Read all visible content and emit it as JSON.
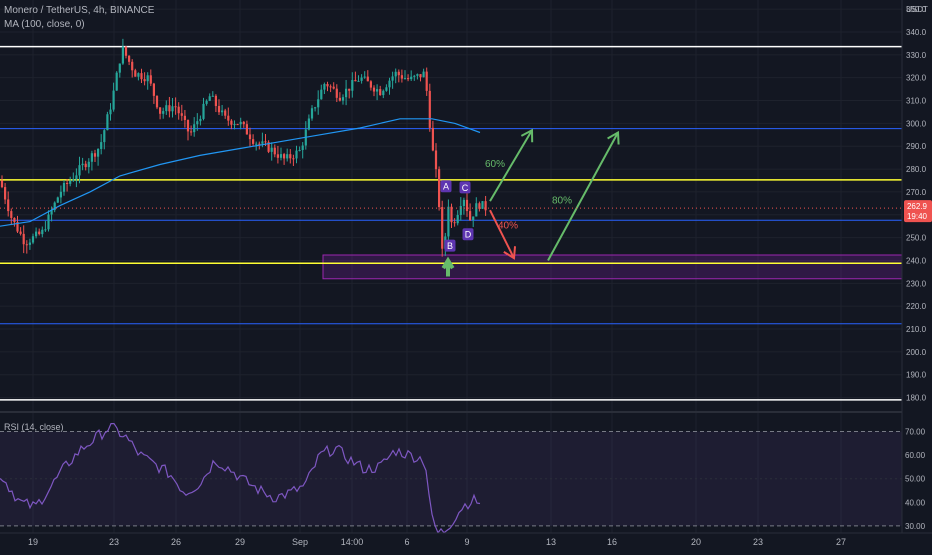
{
  "header": {
    "symbol_line": "Monero / TetherUS, 4h, BINANCE",
    "ma_line": "MA (100, close, 0)",
    "rsi_label": "RSI (14, close)"
  },
  "colors": {
    "background": "#131722",
    "up": "#26a69a",
    "down": "#ef5350",
    "ma": "#2196f3",
    "white_level": "#ffffff",
    "yellow_level": "#ffff33",
    "blue_level": "#2962ff",
    "zone": "#7b1fa2",
    "arrow_green": "#66bb6a",
    "arrow_red": "#ef5350",
    "rsi_line": "#7e57c2",
    "label_badge": "#5e35b1",
    "price_tag": "#ef5350"
  },
  "chart_data": {
    "type": "candlestick",
    "currency": "USDT",
    "last_price": "262.9",
    "countdown": "19:40",
    "y_ticks": [
      "350.0",
      "340.0",
      "330.0",
      "320.0",
      "310.0",
      "300.0",
      "290.0",
      "280.0",
      "270.0",
      "260.0",
      "250.0",
      "240.0",
      "230.0",
      "220.0",
      "210.0",
      "200.0",
      "190.0",
      "180.0"
    ],
    "y_tick_values": [
      350,
      340,
      330,
      320,
      310,
      300,
      290,
      280,
      270,
      260,
      250,
      240,
      230,
      220,
      210,
      200,
      190,
      180
    ],
    "ylim": [
      175,
      354
    ],
    "x_ticks": [
      "19",
      "23",
      "26",
      "29",
      "Sep",
      "14:00",
      "6",
      "9",
      "13",
      "16",
      "20",
      "23",
      "27"
    ],
    "price_path": [
      [
        0,
        275
      ],
      [
        12,
        258
      ],
      [
        25,
        248
      ],
      [
        42,
        252
      ],
      [
        60,
        270
      ],
      [
        80,
        280
      ],
      [
        100,
        290
      ],
      [
        112,
        310
      ],
      [
        122,
        333
      ],
      [
        135,
        322
      ],
      [
        148,
        320
      ],
      [
        160,
        305
      ],
      [
        175,
        308
      ],
      [
        190,
        295
      ],
      [
        210,
        312
      ],
      [
        225,
        302
      ],
      [
        240,
        300
      ],
      [
        255,
        292
      ],
      [
        270,
        289
      ],
      [
        285,
        284
      ],
      [
        300,
        288
      ],
      [
        312,
        305
      ],
      [
        325,
        318
      ],
      [
        340,
        312
      ],
      [
        360,
        320
      ],
      [
        380,
        314
      ],
      [
        395,
        322
      ],
      [
        410,
        319
      ],
      [
        425,
        322
      ],
      [
        432,
        290
      ],
      [
        438,
        272
      ],
      [
        443,
        238
      ],
      [
        448,
        266
      ],
      [
        452,
        255
      ],
      [
        458,
        262
      ],
      [
        463,
        269
      ],
      [
        470,
        258
      ],
      [
        478,
        265
      ],
      [
        486,
        263
      ]
    ],
    "ma_path": [
      [
        0,
        255
      ],
      [
        30,
        257
      ],
      [
        60,
        264
      ],
      [
        90,
        270
      ],
      [
        120,
        277
      ],
      [
        160,
        282
      ],
      [
        200,
        286
      ],
      [
        240,
        289
      ],
      [
        280,
        292
      ],
      [
        320,
        295
      ],
      [
        360,
        298
      ],
      [
        400,
        302
      ],
      [
        432,
        302
      ],
      [
        455,
        300
      ],
      [
        480,
        296
      ]
    ],
    "levels": [
      {
        "value": 333.6,
        "color": "white"
      },
      {
        "value": 179.0,
        "color": "white"
      },
      {
        "value": 275.3,
        "color": "yellow"
      },
      {
        "value": 238.8,
        "color": "yellow"
      },
      {
        "value": 297.7,
        "color": "blue"
      },
      {
        "value": 257.6,
        "color": "blue"
      },
      {
        "value": 212.3,
        "color": "blue"
      }
    ],
    "zone": {
      "low": 232.0,
      "high": 242.4
    },
    "annotations": {
      "pattern_labels": [
        {
          "text": "A",
          "price": 272.5,
          "x_index": 446
        },
        {
          "text": "B",
          "price": 246.5,
          "x_index": 450
        },
        {
          "text": "C",
          "price": 272.0,
          "x_index": 465
        },
        {
          "text": "D",
          "price": 251.5,
          "x_index": 468
        }
      ],
      "percent_labels": [
        {
          "text": "60%",
          "price": 281.0,
          "x_index": 495
        },
        {
          "text": "40%",
          "price": 254.0,
          "x_index": 508
        },
        {
          "text": "80%",
          "price": 265.0,
          "x_index": 562
        }
      ],
      "arrows": [
        {
          "from": [
            490,
            266
          ],
          "to": [
            532,
            297
          ],
          "color": "green"
        },
        {
          "from": [
            490,
            262
          ],
          "to": [
            514,
            241
          ],
          "color": "red"
        },
        {
          "from": [
            548,
            240
          ],
          "to": [
            618,
            296
          ],
          "color": "green"
        },
        {
          "from": [
            448,
            233
          ],
          "to": [
            448,
            240
          ],
          "color": "green"
        }
      ]
    },
    "rsi": {
      "y_ticks": [
        "70.00",
        "60.00",
        "50.00",
        "40.00",
        "30.00"
      ],
      "y_tick_values": [
        70,
        60,
        50,
        40,
        30
      ],
      "ylim": [
        27,
        77
      ],
      "bands": [
        70,
        30
      ],
      "path": [
        [
          0,
          52
        ],
        [
          20,
          40
        ],
        [
          35,
          38
        ],
        [
          50,
          46
        ],
        [
          65,
          55
        ],
        [
          80,
          62
        ],
        [
          95,
          67
        ],
        [
          110,
          72
        ],
        [
          125,
          68
        ],
        [
          140,
          60
        ],
        [
          155,
          56
        ],
        [
          170,
          52
        ],
        [
          185,
          44
        ],
        [
          200,
          48
        ],
        [
          215,
          58
        ],
        [
          230,
          54
        ],
        [
          245,
          49
        ],
        [
          260,
          45
        ],
        [
          275,
          42
        ],
        [
          290,
          44
        ],
        [
          305,
          47
        ],
        [
          320,
          60
        ],
        [
          335,
          63
        ],
        [
          350,
          58
        ],
        [
          365,
          54
        ],
        [
          380,
          55
        ],
        [
          395,
          62
        ],
        [
          410,
          60
        ],
        [
          425,
          58
        ],
        [
          432,
          33
        ],
        [
          438,
          27
        ],
        [
          445,
          28
        ],
        [
          452,
          32
        ],
        [
          462,
          38
        ],
        [
          472,
          41
        ],
        [
          480,
          40
        ]
      ]
    }
  }
}
